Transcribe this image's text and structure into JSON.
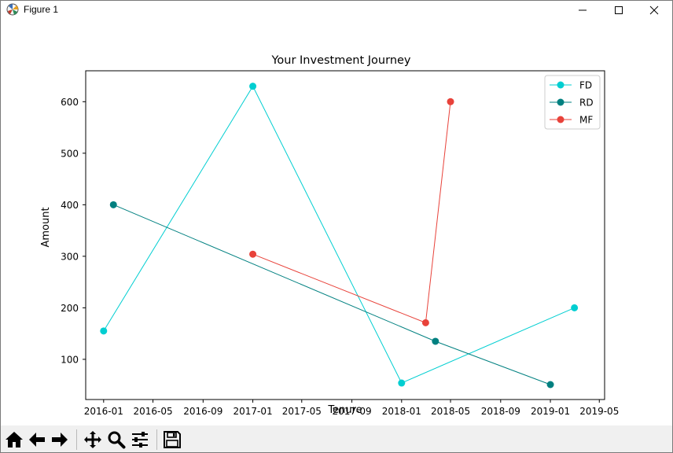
{
  "window": {
    "title": "Figure 1",
    "icon": "matplotlib-icon",
    "controls": [
      "minimize-icon",
      "maximize-icon",
      "close-icon"
    ]
  },
  "toolbar": {
    "buttons": [
      "home-icon",
      "back-arrow-icon",
      "forward-arrow-icon",
      "pan-icon",
      "zoom-icon",
      "configure-subplots-icon",
      "save-icon"
    ]
  },
  "chart_data": {
    "type": "line",
    "title": "Your Investment Journey",
    "xlabel": "Tenure",
    "ylabel": "Amount",
    "x_axis_type": "date",
    "xlim": [
      "2015-11-18",
      "2019-05-14"
    ],
    "ylim": [
      22,
      660
    ],
    "x_ticks": [
      "2016-01",
      "2016-05",
      "2016-09",
      "2017-01",
      "2017-05",
      "2017-09",
      "2018-01",
      "2018-05",
      "2018-09",
      "2019-01",
      "2019-05"
    ],
    "y_ticks": [
      100,
      200,
      300,
      400,
      500,
      600
    ],
    "grid": false,
    "legend_position": "top-right",
    "series": [
      {
        "name": "FD",
        "color": "#00ced1",
        "x": [
          "2016-01-01",
          "2017-01-01",
          "2018-01-01",
          "2019-03-01"
        ],
        "y": [
          155,
          630,
          54,
          200
        ]
      },
      {
        "name": "RD",
        "color": "#008080",
        "x": [
          "2016-01-25",
          "2018-03-25",
          "2019-01-01"
        ],
        "y": [
          400,
          135,
          51
        ]
      },
      {
        "name": "MF",
        "color": "#e8423a",
        "x": [
          "2017-01-01",
          "2018-03-01",
          "2018-05-01"
        ],
        "y": [
          304,
          171,
          600
        ]
      }
    ]
  }
}
